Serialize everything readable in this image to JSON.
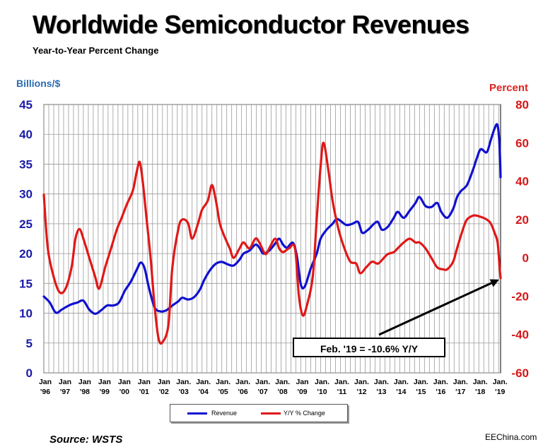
{
  "chart_data": {
    "type": "line",
    "title": "Worldwide Semiconductor Revenues",
    "subtitle": "Year-to-Year Percent Change",
    "ylabel_left": "Billions/$",
    "ylabel_right": "Percent",
    "ylim_left": [
      0,
      45
    ],
    "ylim_right": [
      -60,
      80
    ],
    "yticks_left": [
      "0",
      "5",
      "10",
      "15",
      "20",
      "25",
      "30",
      "35",
      "40",
      "45"
    ],
    "yticks_right": [
      "-60",
      "-40",
      "-20",
      "0",
      "20",
      "40",
      "60",
      "80"
    ],
    "xtick_labels": [
      [
        "Jan",
        "'96"
      ],
      [
        "Jan",
        "'97"
      ],
      [
        "Jan",
        "'98"
      ],
      [
        "Jan",
        "'99"
      ],
      [
        "Jan",
        "'00"
      ],
      [
        "Jan",
        "'01"
      ],
      [
        "Jan",
        "'02"
      ],
      [
        "Jan.",
        "'03"
      ],
      [
        "Jan.",
        "'04"
      ],
      [
        "Jan.",
        "'05"
      ],
      [
        "Jan.",
        "'06"
      ],
      [
        "Jan.",
        "'07"
      ],
      [
        "Jan.",
        "'08"
      ],
      [
        "Jan",
        "'09"
      ],
      [
        "Jan.",
        "'10"
      ],
      [
        "Jan.",
        "'11"
      ],
      [
        "Jan.",
        "'12"
      ],
      [
        "Jan.",
        "'13"
      ],
      [
        "Jan.",
        "'14"
      ],
      [
        "Jan.",
        "'15"
      ],
      [
        "Jan.",
        "'16"
      ],
      [
        "Jan.",
        "'17"
      ],
      [
        "Jan.",
        "'18"
      ],
      [
        "Jan.",
        "'19"
      ]
    ],
    "x_start": 1996.0,
    "x_end": 2019.1,
    "grid": true,
    "legend_position": "bottom-center",
    "series": [
      {
        "name": "Revenue",
        "axis": "left",
        "color": "#1010d0",
        "points": [
          [
            1996.0,
            12.8
          ],
          [
            1996.3,
            11.8
          ],
          [
            1996.6,
            10.1
          ],
          [
            1996.9,
            10.6
          ],
          [
            1997.1,
            11.0
          ],
          [
            1997.4,
            11.5
          ],
          [
            1997.7,
            11.8
          ],
          [
            1998.0,
            12.1
          ],
          [
            1998.3,
            10.6
          ],
          [
            1998.6,
            9.9
          ],
          [
            1998.9,
            10.5
          ],
          [
            1999.2,
            11.3
          ],
          [
            1999.5,
            11.3
          ],
          [
            1999.8,
            11.8
          ],
          [
            2000.1,
            13.8
          ],
          [
            2000.4,
            15.3
          ],
          [
            2000.7,
            17.3
          ],
          [
            2000.9,
            18.5
          ],
          [
            2001.1,
            17.5
          ],
          [
            2001.3,
            14.5
          ],
          [
            2001.6,
            11.0
          ],
          [
            2001.9,
            10.3
          ],
          [
            2002.2,
            10.5
          ],
          [
            2002.5,
            11.3
          ],
          [
            2002.8,
            12.0
          ],
          [
            2003.0,
            12.6
          ],
          [
            2003.3,
            12.3
          ],
          [
            2003.6,
            12.7
          ],
          [
            2003.9,
            14.0
          ],
          [
            2004.1,
            15.5
          ],
          [
            2004.4,
            17.2
          ],
          [
            2004.7,
            18.3
          ],
          [
            2005.0,
            18.6
          ],
          [
            2005.3,
            18.2
          ],
          [
            2005.6,
            18.0
          ],
          [
            2005.9,
            19.0
          ],
          [
            2006.1,
            20.0
          ],
          [
            2006.4,
            20.5
          ],
          [
            2006.7,
            21.5
          ],
          [
            2006.9,
            21.0
          ],
          [
            2007.1,
            20.0
          ],
          [
            2007.4,
            20.5
          ],
          [
            2007.7,
            21.7
          ],
          [
            2007.9,
            22.5
          ],
          [
            2008.1,
            21.5
          ],
          [
            2008.3,
            21.0
          ],
          [
            2008.6,
            21.8
          ],
          [
            2008.8,
            19.5
          ],
          [
            2009.0,
            14.8
          ],
          [
            2009.2,
            14.5
          ],
          [
            2009.5,
            17.5
          ],
          [
            2009.8,
            20.0
          ],
          [
            2010.0,
            22.5
          ],
          [
            2010.3,
            24.0
          ],
          [
            2010.6,
            25.0
          ],
          [
            2010.8,
            25.8
          ],
          [
            2011.0,
            25.5
          ],
          [
            2011.3,
            24.8
          ],
          [
            2011.6,
            25.0
          ],
          [
            2011.9,
            25.3
          ],
          [
            2012.1,
            23.5
          ],
          [
            2012.4,
            24.0
          ],
          [
            2012.7,
            25.0
          ],
          [
            2012.9,
            25.3
          ],
          [
            2013.1,
            24.0
          ],
          [
            2013.4,
            24.5
          ],
          [
            2013.7,
            26.0
          ],
          [
            2013.9,
            27.0
          ],
          [
            2014.2,
            26.0
          ],
          [
            2014.5,
            27.2
          ],
          [
            2014.8,
            28.5
          ],
          [
            2015.0,
            29.5
          ],
          [
            2015.3,
            28.0
          ],
          [
            2015.6,
            27.8
          ],
          [
            2015.9,
            28.5
          ],
          [
            2016.1,
            27.0
          ],
          [
            2016.4,
            26.0
          ],
          [
            2016.7,
            27.5
          ],
          [
            2016.9,
            29.5
          ],
          [
            2017.1,
            30.5
          ],
          [
            2017.4,
            31.5
          ],
          [
            2017.7,
            34.0
          ],
          [
            2017.9,
            36.0
          ],
          [
            2018.1,
            37.5
          ],
          [
            2018.4,
            37.0
          ],
          [
            2018.6,
            39.0
          ],
          [
            2018.8,
            41.0
          ],
          [
            2018.95,
            41.5
          ],
          [
            2019.05,
            38.0
          ],
          [
            2019.1,
            32.8
          ]
        ]
      },
      {
        "name": "Y/Y % Change",
        "axis": "right",
        "color": "#e01818",
        "points": [
          [
            1996.0,
            33.0
          ],
          [
            1996.2,
            5.0
          ],
          [
            1996.5,
            -10.0
          ],
          [
            1996.8,
            -18.0
          ],
          [
            1997.1,
            -16.0
          ],
          [
            1997.4,
            -5.0
          ],
          [
            1997.6,
            10.0
          ],
          [
            1997.8,
            15.0
          ],
          [
            1998.0,
            10.0
          ],
          [
            1998.3,
            0.0
          ],
          [
            1998.6,
            -10.0
          ],
          [
            1998.8,
            -16.0
          ],
          [
            1999.1,
            -5.0
          ],
          [
            1999.4,
            5.0
          ],
          [
            1999.7,
            15.0
          ],
          [
            1999.9,
            20.0
          ],
          [
            2000.2,
            28.0
          ],
          [
            2000.5,
            35.0
          ],
          [
            2000.7,
            45.0
          ],
          [
            2000.85,
            50.0
          ],
          [
            2001.0,
            40.0
          ],
          [
            2001.2,
            20.0
          ],
          [
            2001.4,
            0.0
          ],
          [
            2001.6,
            -25.0
          ],
          [
            2001.8,
            -42.0
          ],
          [
            2002.0,
            -44.0
          ],
          [
            2002.3,
            -35.0
          ],
          [
            2002.5,
            -5.0
          ],
          [
            2002.8,
            15.0
          ],
          [
            2003.0,
            20.0
          ],
          [
            2003.3,
            18.0
          ],
          [
            2003.5,
            10.0
          ],
          [
            2003.8,
            18.0
          ],
          [
            2004.0,
            25.0
          ],
          [
            2004.3,
            30.0
          ],
          [
            2004.5,
            38.0
          ],
          [
            2004.7,
            30.0
          ],
          [
            2004.9,
            18.0
          ],
          [
            2005.1,
            12.0
          ],
          [
            2005.4,
            5.0
          ],
          [
            2005.6,
            0.0
          ],
          [
            2005.9,
            5.0
          ],
          [
            2006.1,
            8.0
          ],
          [
            2006.4,
            5.0
          ],
          [
            2006.7,
            10.0
          ],
          [
            2006.9,
            8.0
          ],
          [
            2007.2,
            2.0
          ],
          [
            2007.4,
            5.0
          ],
          [
            2007.7,
            10.0
          ],
          [
            2007.9,
            5.0
          ],
          [
            2008.1,
            3.0
          ],
          [
            2008.4,
            5.0
          ],
          [
            2008.7,
            5.0
          ],
          [
            2008.9,
            -20.0
          ],
          [
            2009.1,
            -30.0
          ],
          [
            2009.3,
            -25.0
          ],
          [
            2009.6,
            -10.0
          ],
          [
            2009.8,
            20.0
          ],
          [
            2010.0,
            48.0
          ],
          [
            2010.15,
            60.0
          ],
          [
            2010.4,
            45.0
          ],
          [
            2010.6,
            30.0
          ],
          [
            2010.9,
            15.0
          ],
          [
            2011.2,
            5.0
          ],
          [
            2011.5,
            -2.0
          ],
          [
            2011.8,
            -3.0
          ],
          [
            2012.0,
            -8.0
          ],
          [
            2012.3,
            -5.0
          ],
          [
            2012.6,
            -2.0
          ],
          [
            2012.9,
            -3.0
          ],
          [
            2013.2,
            0.0
          ],
          [
            2013.4,
            2.0
          ],
          [
            2013.7,
            3.0
          ],
          [
            2013.9,
            5.0
          ],
          [
            2014.2,
            8.0
          ],
          [
            2014.5,
            10.0
          ],
          [
            2014.8,
            8.0
          ],
          [
            2015.0,
            8.0
          ],
          [
            2015.3,
            5.0
          ],
          [
            2015.6,
            0.0
          ],
          [
            2015.9,
            -5.0
          ],
          [
            2016.2,
            -6.0
          ],
          [
            2016.4,
            -6.0
          ],
          [
            2016.7,
            -2.0
          ],
          [
            2016.9,
            5.0
          ],
          [
            2017.2,
            15.0
          ],
          [
            2017.4,
            20.0
          ],
          [
            2017.7,
            22.0
          ],
          [
            2017.9,
            22.0
          ],
          [
            2018.2,
            21.0
          ],
          [
            2018.4,
            20.0
          ],
          [
            2018.6,
            18.0
          ],
          [
            2018.8,
            13.0
          ],
          [
            2018.95,
            8.0
          ],
          [
            2019.05,
            -5.0
          ],
          [
            2019.1,
            -10.6
          ]
        ]
      }
    ],
    "annotation": {
      "text": "Feb. '19 = -10.6% Y/Y",
      "target_x": 2019.1,
      "target_y": -10.6
    }
  },
  "source": "Source: WSTS",
  "watermark": "EEChina.com"
}
